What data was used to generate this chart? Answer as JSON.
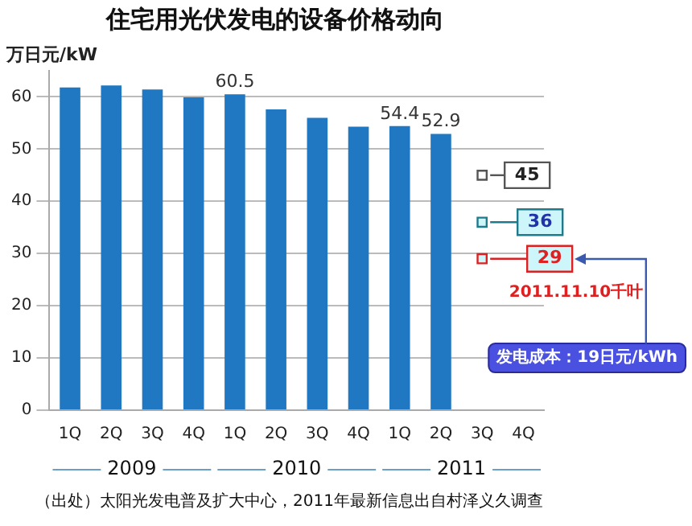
{
  "chart_data": {
    "type": "bar",
    "title": "住宅用光伏发电的设备价格动向",
    "ylabel": "万日元/kW",
    "categories": [
      "1Q",
      "2Q",
      "3Q",
      "4Q",
      "1Q",
      "2Q",
      "3Q",
      "4Q",
      "1Q",
      "2Q",
      "3Q",
      "4Q"
    ],
    "series": [
      {
        "color": "#1f78c1",
        "values": [
          61.8,
          62.2,
          61.4,
          59.9,
          60.5,
          57.6,
          56.0,
          54.3,
          54.4,
          52.9,
          null,
          null
        ],
        "value_labels": [
          null,
          null,
          null,
          null,
          "60.5",
          null,
          null,
          null,
          "54.4",
          "52.9",
          null,
          null
        ]
      },
      {
        "type": "scatter",
        "color": "#555555",
        "values": [
          null,
          null,
          null,
          null,
          null,
          null,
          null,
          null,
          null,
          null,
          45,
          null
        ],
        "value_labels": [
          null,
          null,
          null,
          null,
          null,
          null,
          null,
          null,
          null,
          null,
          "45",
          null
        ]
      },
      {
        "type": "scatter",
        "color": "#1f7a8c",
        "values": [
          null,
          null,
          null,
          null,
          null,
          null,
          null,
          null,
          null,
          null,
          36,
          null
        ],
        "value_labels": [
          null,
          null,
          null,
          null,
          null,
          null,
          null,
          null,
          null,
          null,
          "36",
          null
        ]
      },
      {
        "type": "scatter",
        "color": "#e02020",
        "values": [
          null,
          null,
          null,
          null,
          null,
          null,
          null,
          null,
          null,
          null,
          29,
          null
        ],
        "value_labels": [
          null,
          null,
          null,
          null,
          null,
          null,
          null,
          null,
          null,
          null,
          "29",
          null
        ]
      }
    ],
    "marker": "square",
    "ylim": [
      0,
      65
    ],
    "yticks": [
      0,
      10,
      20,
      30,
      40,
      50,
      60
    ],
    "grid": "y",
    "annotations": [
      "2011.11.10千叶",
      "发电成本：19日元/kWh",
      "2009",
      "2010",
      "2011",
      "（出处）太阳光发电普及扩大中心，2011年最新信息出自村泽义久调查"
    ]
  }
}
